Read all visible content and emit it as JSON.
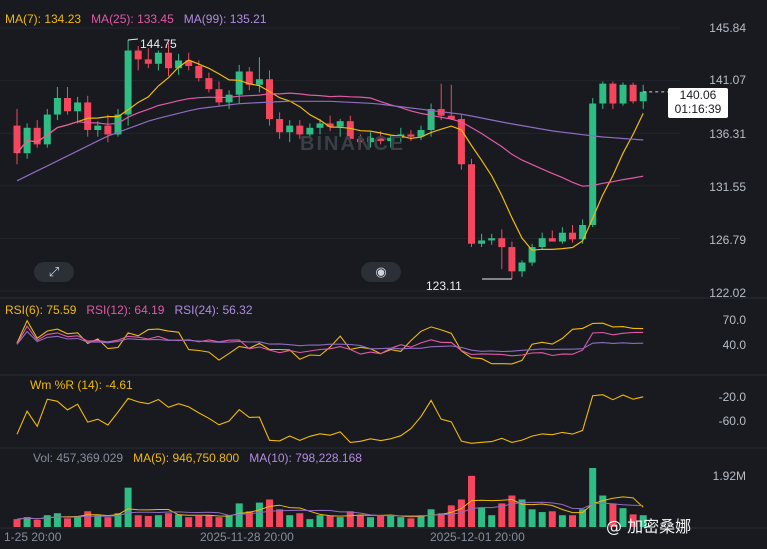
{
  "indicators": {
    "ma7": "MA(7): 134.23",
    "ma25": "MA(25): 133.45",
    "ma99": "MA(99): 135.21",
    "rsi6": "RSI(6): 75.59",
    "rsi12": "RSI(12): 64.19",
    "rsi24": "RSI(24): 56.32",
    "wr": "Wm %R (14): -4.61",
    "vol": "Vol: 457,369.029",
    "vol_ma5": "MA(5): 946,750.800",
    "vol_ma10": "MA(10): 798,228.168"
  },
  "price_axis": [
    "145.84",
    "141.07",
    "136.31",
    "131.55",
    "126.79",
    "122.02"
  ],
  "rsi_axis": [
    "70.0",
    "40.0"
  ],
  "wr_axis": [
    "-20.0",
    "-60.0"
  ],
  "vol_axis": "1.92M",
  "current_price": "140.06",
  "countdown": "01:16:39",
  "high_label": "144.75",
  "low_label": "123.11",
  "time_axis": [
    "1-25 20:00",
    "2025-11-28 20:00",
    "2025-12-01 20:00"
  ],
  "watermark_brand": "BINANCE",
  "watermark_author": "@ 加密桑娜",
  "colors": {
    "up": "#2ebd85",
    "down": "#f6465d",
    "ma7": "#f0b90b",
    "ma25": "#e05aa6",
    "ma99": "#8e6cc0"
  },
  "chart_data": {
    "type": "candlestick",
    "series": [
      {
        "o": 137.0,
        "h": 138.5,
        "l": 133.5,
        "c": 134.5
      },
      {
        "o": 134.5,
        "h": 137.2,
        "l": 134.0,
        "c": 136.8
      },
      {
        "o": 136.8,
        "h": 137.5,
        "l": 135.0,
        "c": 135.3
      },
      {
        "o": 135.3,
        "h": 138.5,
        "l": 135.0,
        "c": 138.0
      },
      {
        "o": 138.0,
        "h": 140.5,
        "l": 137.5,
        "c": 139.5
      },
      {
        "o": 139.5,
        "h": 140.5,
        "l": 138.0,
        "c": 138.3
      },
      {
        "o": 138.3,
        "h": 139.6,
        "l": 137.2,
        "c": 139.1
      },
      {
        "o": 139.1,
        "h": 139.7,
        "l": 136.0,
        "c": 136.6
      },
      {
        "o": 136.6,
        "h": 137.4,
        "l": 136.0,
        "c": 137.0
      },
      {
        "o": 137.0,
        "h": 138.0,
        "l": 135.5,
        "c": 136.2
      },
      {
        "o": 136.2,
        "h": 138.5,
        "l": 136.0,
        "c": 138.0
      },
      {
        "o": 138.0,
        "h": 144.75,
        "l": 137.0,
        "c": 143.8
      },
      {
        "o": 143.8,
        "h": 144.2,
        "l": 142.0,
        "c": 143.0
      },
      {
        "o": 143.0,
        "h": 144.0,
        "l": 142.2,
        "c": 142.6
      },
      {
        "o": 142.6,
        "h": 143.8,
        "l": 142.0,
        "c": 143.6
      },
      {
        "o": 143.6,
        "h": 144.5,
        "l": 141.5,
        "c": 142.2
      },
      {
        "o": 142.2,
        "h": 143.5,
        "l": 141.6,
        "c": 142.9
      },
      {
        "o": 142.9,
        "h": 143.6,
        "l": 142.0,
        "c": 142.4
      },
      {
        "o": 142.4,
        "h": 142.9,
        "l": 141.0,
        "c": 141.3
      },
      {
        "o": 141.3,
        "h": 141.8,
        "l": 140.0,
        "c": 140.3
      },
      {
        "o": 140.3,
        "h": 141.0,
        "l": 138.8,
        "c": 139.1
      },
      {
        "o": 139.1,
        "h": 140.2,
        "l": 138.5,
        "c": 139.8
      },
      {
        "o": 139.8,
        "h": 142.5,
        "l": 139.0,
        "c": 141.9
      },
      {
        "o": 141.9,
        "h": 142.3,
        "l": 140.2,
        "c": 140.7
      },
      {
        "o": 140.7,
        "h": 143.2,
        "l": 140.0,
        "c": 141.2
      },
      {
        "o": 141.2,
        "h": 142.0,
        "l": 137.0,
        "c": 137.6
      },
      {
        "o": 137.6,
        "h": 138.2,
        "l": 135.8,
        "c": 136.4
      },
      {
        "o": 136.4,
        "h": 137.5,
        "l": 135.5,
        "c": 137.0
      },
      {
        "o": 137.0,
        "h": 137.5,
        "l": 135.8,
        "c": 136.2
      },
      {
        "o": 136.2,
        "h": 137.2,
        "l": 135.9,
        "c": 136.8
      },
      {
        "o": 136.8,
        "h": 137.6,
        "l": 136.2,
        "c": 137.2
      },
      {
        "o": 137.2,
        "h": 137.9,
        "l": 136.5,
        "c": 136.9
      },
      {
        "o": 136.9,
        "h": 137.6,
        "l": 136.0,
        "c": 137.4
      },
      {
        "o": 137.4,
        "h": 137.9,
        "l": 135.5,
        "c": 135.8
      },
      {
        "o": 135.8,
        "h": 136.2,
        "l": 135.0,
        "c": 135.5
      },
      {
        "o": 135.5,
        "h": 136.4,
        "l": 135.0,
        "c": 135.9
      },
      {
        "o": 135.9,
        "h": 136.5,
        "l": 135.3,
        "c": 135.6
      },
      {
        "o": 135.6,
        "h": 136.2,
        "l": 135.0,
        "c": 135.9
      },
      {
        "o": 135.9,
        "h": 136.8,
        "l": 135.4,
        "c": 136.2
      },
      {
        "o": 136.2,
        "h": 136.6,
        "l": 135.6,
        "c": 136.0
      },
      {
        "o": 136.0,
        "h": 137.0,
        "l": 135.7,
        "c": 136.6
      },
      {
        "o": 136.6,
        "h": 139.0,
        "l": 136.0,
        "c": 138.5
      },
      {
        "o": 138.5,
        "h": 140.8,
        "l": 137.5,
        "c": 137.9
      },
      {
        "o": 137.9,
        "h": 140.7,
        "l": 137.5,
        "c": 137.6
      },
      {
        "o": 137.6,
        "h": 138.0,
        "l": 133.0,
        "c": 133.5
      },
      {
        "o": 133.5,
        "h": 134.0,
        "l": 126.0,
        "c": 126.3
      },
      {
        "o": 126.3,
        "h": 127.2,
        "l": 126.0,
        "c": 126.6
      },
      {
        "o": 126.6,
        "h": 127.2,
        "l": 126.2,
        "c": 126.8
      },
      {
        "o": 126.8,
        "h": 127.6,
        "l": 124.0,
        "c": 126.0
      },
      {
        "o": 126.0,
        "h": 126.5,
        "l": 123.11,
        "c": 123.8
      },
      {
        "o": 123.8,
        "h": 124.8,
        "l": 123.3,
        "c": 124.6
      },
      {
        "o": 124.6,
        "h": 126.3,
        "l": 124.3,
        "c": 126.0
      },
      {
        "o": 126.0,
        "h": 127.3,
        "l": 125.8,
        "c": 126.8
      },
      {
        "o": 126.8,
        "h": 127.5,
        "l": 126.5,
        "c": 126.5
      },
      {
        "o": 126.5,
        "h": 127.8,
        "l": 126.3,
        "c": 127.3
      },
      {
        "o": 127.3,
        "h": 128.0,
        "l": 126.4,
        "c": 126.7
      },
      {
        "o": 126.7,
        "h": 128.5,
        "l": 126.3,
        "c": 128.0
      },
      {
        "o": 128.0,
        "h": 139.5,
        "l": 127.8,
        "c": 139.0
      },
      {
        "o": 139.0,
        "h": 141.0,
        "l": 138.5,
        "c": 140.8
      },
      {
        "o": 140.8,
        "h": 141.0,
        "l": 138.5,
        "c": 139.0
      },
      {
        "o": 139.0,
        "h": 140.9,
        "l": 138.8,
        "c": 140.7
      },
      {
        "o": 140.7,
        "h": 140.9,
        "l": 139.0,
        "c": 139.2
      },
      {
        "o": 139.2,
        "h": 140.7,
        "l": 138.5,
        "c": 140.06
      }
    ],
    "volume": [
      0.2,
      0.25,
      0.18,
      0.3,
      0.35,
      0.22,
      0.28,
      0.4,
      0.3,
      0.25,
      0.35,
      1.0,
      0.3,
      0.28,
      0.3,
      0.35,
      0.32,
      0.25,
      0.28,
      0.3,
      0.25,
      0.3,
      0.6,
      0.4,
      0.62,
      0.7,
      0.45,
      0.3,
      0.35,
      0.2,
      0.3,
      0.28,
      0.25,
      0.4,
      0.3,
      0.25,
      0.28,
      0.3,
      0.25,
      0.22,
      0.3,
      0.45,
      0.35,
      0.55,
      0.7,
      1.3,
      0.5,
      0.3,
      0.6,
      0.8,
      0.7,
      0.45,
      0.38,
      0.4,
      0.3,
      0.3,
      0.45,
      1.5,
      0.8,
      0.6,
      0.48,
      0.32,
      0.3
    ],
    "ylim": [
      122.02,
      145.84
    ]
  }
}
